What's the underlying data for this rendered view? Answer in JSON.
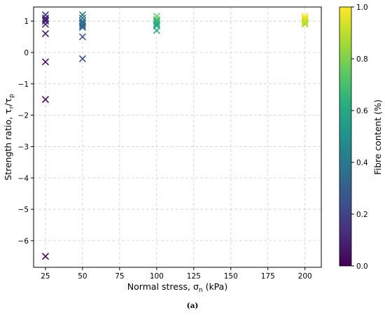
{
  "chart_data": {
    "type": "scatter",
    "marker": "x",
    "xlabel": "Normal stress, σ",
    "xlabel_sub": "n",
    "xlabel_unit": " (kPa)",
    "ylabel": "Strength ratio, τ",
    "ylabel_sub1": "r",
    "ylabel_mid": "/τ",
    "ylabel_sub2": "p",
    "xlim": [
      17,
      211
    ],
    "ylim": [
      -6.85,
      1.45
    ],
    "xticks": [
      25,
      50,
      75,
      100,
      125,
      150,
      175,
      200
    ],
    "yticks": [
      -6,
      -5,
      -4,
      -3,
      -2,
      -1,
      0,
      1
    ],
    "grid": true,
    "colorbar": {
      "label": "Fibre content (%)",
      "range": [
        0.0,
        1.0
      ],
      "ticks": [
        "0.0",
        "0.2",
        "0.4",
        "0.6",
        "0.8",
        "1.0"
      ],
      "colormap": "viridis"
    },
    "points": [
      {
        "x": 25,
        "y": 1.2,
        "c": 0.15
      },
      {
        "x": 25,
        "y": 1.1,
        "c": 0.12
      },
      {
        "x": 25,
        "y": 1.05,
        "c": 0.1
      },
      {
        "x": 25,
        "y": 1.0,
        "c": 0.08
      },
      {
        "x": 25,
        "y": 0.9,
        "c": 0.1
      },
      {
        "x": 25,
        "y": 0.6,
        "c": 0.08
      },
      {
        "x": 25,
        "y": -0.3,
        "c": 0.05
      },
      {
        "x": 25,
        "y": -1.5,
        "c": 0.03
      },
      {
        "x": 25,
        "y": -6.5,
        "c": 0.02
      },
      {
        "x": 50,
        "y": 1.2,
        "c": 0.4
      },
      {
        "x": 50,
        "y": 1.1,
        "c": 0.38
      },
      {
        "x": 50,
        "y": 1.0,
        "c": 0.36
      },
      {
        "x": 50,
        "y": 0.95,
        "c": 0.34
      },
      {
        "x": 50,
        "y": 0.9,
        "c": 0.4
      },
      {
        "x": 50,
        "y": 0.85,
        "c": 0.32
      },
      {
        "x": 50,
        "y": 0.8,
        "c": 0.3
      },
      {
        "x": 50,
        "y": 0.5,
        "c": 0.25
      },
      {
        "x": 50,
        "y": -0.2,
        "c": 0.25
      },
      {
        "x": 100,
        "y": 1.15,
        "c": 0.75
      },
      {
        "x": 100,
        "y": 1.05,
        "c": 0.7
      },
      {
        "x": 100,
        "y": 1.0,
        "c": 0.68
      },
      {
        "x": 100,
        "y": 0.95,
        "c": 0.65
      },
      {
        "x": 100,
        "y": 0.9,
        "c": 0.62
      },
      {
        "x": 100,
        "y": 0.85,
        "c": 0.6
      },
      {
        "x": 100,
        "y": 0.7,
        "c": 0.58
      },
      {
        "x": 200,
        "y": 1.15,
        "c": 1.0
      },
      {
        "x": 200,
        "y": 1.1,
        "c": 0.98
      },
      {
        "x": 200,
        "y": 1.05,
        "c": 0.95
      },
      {
        "x": 200,
        "y": 1.0,
        "c": 0.92
      },
      {
        "x": 200,
        "y": 0.95,
        "c": 0.9
      },
      {
        "x": 200,
        "y": 0.9,
        "c": 0.88
      }
    ]
  },
  "caption": "(a)"
}
